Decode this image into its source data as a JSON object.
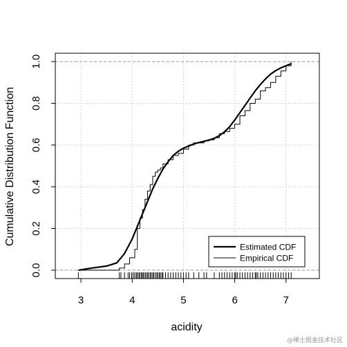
{
  "chart_data": {
    "type": "line",
    "xlabel": "acidity",
    "ylabel": "Cumulative Distribution Function",
    "xlim": [
      2.5,
      7.65
    ],
    "ylim": [
      -0.04,
      1.04
    ],
    "x_ticks": [
      3,
      4,
      5,
      6,
      7
    ],
    "y_ticks": [
      0.0,
      0.2,
      0.4,
      0.6,
      0.8,
      1.0
    ],
    "x_tick_labels": [
      "3",
      "4",
      "5",
      "6",
      "7"
    ],
    "y_tick_labels": [
      "0.0",
      "0.2",
      "0.4",
      "0.6",
      "0.8",
      "1.0"
    ],
    "grid": true,
    "reference_lines": [
      0,
      1
    ],
    "legend_position": "bottom-right",
    "series": [
      {
        "name": "Estimated CDF",
        "style": "thick",
        "x": [
          2.95,
          3.2,
          3.5,
          3.7,
          3.85,
          4.0,
          4.1,
          4.2,
          4.3,
          4.4,
          4.5,
          4.6,
          4.7,
          4.8,
          4.9,
          5.0,
          5.1,
          5.2,
          5.3,
          5.4,
          5.5,
          5.6,
          5.7,
          5.8,
          5.9,
          6.0,
          6.1,
          6.2,
          6.3,
          6.4,
          6.5,
          6.6,
          6.7,
          6.8,
          6.9,
          7.0,
          7.1
        ],
        "y": [
          0.0,
          0.01,
          0.02,
          0.035,
          0.08,
          0.15,
          0.21,
          0.27,
          0.33,
          0.39,
          0.44,
          0.485,
          0.52,
          0.55,
          0.57,
          0.585,
          0.595,
          0.605,
          0.612,
          0.618,
          0.624,
          0.632,
          0.645,
          0.663,
          0.688,
          0.72,
          0.755,
          0.79,
          0.825,
          0.86,
          0.89,
          0.917,
          0.94,
          0.957,
          0.97,
          0.98,
          0.99
        ]
      },
      {
        "name": "Empirical CDF",
        "style": "step",
        "x": [
          2.95,
          3.75,
          3.85,
          3.95,
          4.05,
          4.1,
          4.15,
          4.2,
          4.25,
          4.3,
          4.35,
          4.4,
          4.45,
          4.5,
          4.55,
          4.6,
          4.7,
          4.8,
          4.9,
          5.0,
          5.1,
          5.2,
          5.3,
          5.4,
          5.5,
          5.6,
          5.7,
          5.8,
          5.9,
          6.0,
          6.1,
          6.2,
          6.3,
          6.4,
          6.5,
          6.6,
          6.7,
          6.8,
          6.9,
          7.0,
          7.1
        ],
        "y": [
          0.0,
          0.01,
          0.03,
          0.06,
          0.1,
          0.2,
          0.25,
          0.29,
          0.34,
          0.38,
          0.41,
          0.45,
          0.47,
          0.48,
          0.49,
          0.51,
          0.53,
          0.55,
          0.56,
          0.58,
          0.6,
          0.61,
          0.61,
          0.62,
          0.625,
          0.635,
          0.655,
          0.665,
          0.68,
          0.7,
          0.74,
          0.765,
          0.8,
          0.82,
          0.86,
          0.875,
          0.9,
          0.93,
          0.955,
          0.98,
          1.0
        ]
      }
    ],
    "rug_x": [
      2.95,
      3.75,
      3.78,
      3.85,
      3.92,
      3.95,
      3.99,
      4.02,
      4.05,
      4.08,
      4.1,
      4.13,
      4.15,
      4.18,
      4.2,
      4.22,
      4.25,
      4.27,
      4.3,
      4.32,
      4.35,
      4.37,
      4.4,
      4.42,
      4.45,
      4.48,
      4.5,
      4.53,
      4.55,
      4.58,
      4.6,
      4.65,
      4.7,
      4.75,
      4.8,
      4.85,
      4.9,
      4.95,
      5.0,
      5.05,
      5.1,
      5.2,
      5.3,
      5.4,
      5.45,
      5.6,
      5.7,
      5.75,
      5.8,
      5.85,
      5.9,
      5.95,
      6.0,
      6.02,
      6.05,
      6.1,
      6.15,
      6.2,
      6.25,
      6.3,
      6.35,
      6.4,
      6.42,
      6.45,
      6.5,
      6.55,
      6.6,
      6.65,
      6.7,
      6.75,
      6.8,
      6.85,
      6.9,
      6.95,
      7.0,
      7.05,
      7.1
    ]
  },
  "watermark": "@稀土掘金技术社区"
}
